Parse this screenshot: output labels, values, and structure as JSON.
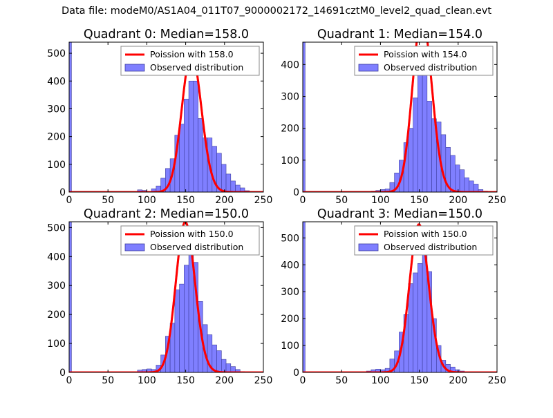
{
  "figure": {
    "suptitle": "Data file: modeM0/AS1A04_011T07_9000002172_14691cztM0_level2_quad_clean.evt"
  },
  "colors": {
    "bar_fill": "#7f7fff",
    "bar_edge": "#3d3d9e",
    "poisson_line": "#ff0000",
    "legend_edge": "#888888"
  },
  "chart_data": [
    {
      "type": "bar",
      "title": "Quadrant 0: Median=158.0",
      "median": 158.0,
      "xlim": [
        0,
        250
      ],
      "ylim": [
        0,
        540
      ],
      "xticks": [
        0,
        50,
        100,
        150,
        200,
        250
      ],
      "yticks": [
        0,
        100,
        200,
        300,
        400,
        500
      ],
      "legend": [
        "Poission with 158.0",
        "Observed distribution"
      ],
      "legend_loc": "upper right",
      "bin_width": 6,
      "zero_bin": 540,
      "hist": [
        [
          88,
          8
        ],
        [
          94,
          6
        ],
        [
          106,
          12
        ],
        [
          112,
          22
        ],
        [
          118,
          50
        ],
        [
          124,
          85
        ],
        [
          130,
          120
        ],
        [
          136,
          205
        ],
        [
          142,
          245
        ],
        [
          148,
          335
        ],
        [
          154,
          400
        ],
        [
          160,
          400
        ],
        [
          166,
          265
        ],
        [
          172,
          195
        ],
        [
          178,
          195
        ],
        [
          184,
          165
        ],
        [
          190,
          140
        ],
        [
          196,
          100
        ],
        [
          202,
          65
        ],
        [
          208,
          40
        ],
        [
          214,
          25
        ],
        [
          220,
          15
        ],
        [
          226,
          5
        ],
        [
          232,
          3
        ]
      ]
    },
    {
      "type": "bar",
      "title": "Quadrant 1: Median=154.0",
      "median": 154.0,
      "xlim": [
        0,
        250
      ],
      "ylim": [
        0,
        470
      ],
      "xticks": [
        0,
        50,
        100,
        150,
        200,
        250
      ],
      "yticks": [
        0,
        100,
        200,
        300,
        400
      ],
      "legend": [
        "Poission with 154.0",
        "Observed distribution"
      ],
      "legend_loc": "upper right",
      "bin_width": 6,
      "zero_bin": 470,
      "hist": [
        [
          88,
          3
        ],
        [
          94,
          5
        ],
        [
          100,
          8
        ],
        [
          106,
          10
        ],
        [
          112,
          30
        ],
        [
          118,
          60
        ],
        [
          124,
          100
        ],
        [
          130,
          155
        ],
        [
          136,
          200
        ],
        [
          142,
          295
        ],
        [
          148,
          400
        ],
        [
          154,
          440
        ],
        [
          160,
          285
        ],
        [
          166,
          230
        ],
        [
          172,
          220
        ],
        [
          178,
          180
        ],
        [
          184,
          140
        ],
        [
          190,
          115
        ],
        [
          196,
          85
        ],
        [
          202,
          70
        ],
        [
          208,
          45
        ],
        [
          214,
          35
        ],
        [
          220,
          25
        ],
        [
          226,
          8
        ],
        [
          232,
          3
        ]
      ]
    },
    {
      "type": "bar",
      "title": "Quadrant 2: Median=150.0",
      "median": 150.0,
      "xlim": [
        0,
        250
      ],
      "ylim": [
        0,
        520
      ],
      "xticks": [
        0,
        50,
        100,
        150,
        200,
        250
      ],
      "yticks": [
        0,
        100,
        200,
        300,
        400,
        500
      ],
      "legend": [
        "Poission with 150.0",
        "Observed distribution"
      ],
      "legend_loc": "upper right",
      "bin_width": 6,
      "zero_bin": 520,
      "hist": [
        [
          88,
          8
        ],
        [
          94,
          10
        ],
        [
          100,
          12
        ],
        [
          106,
          10
        ],
        [
          112,
          25
        ],
        [
          118,
          60
        ],
        [
          124,
          125
        ],
        [
          130,
          170
        ],
        [
          136,
          285
        ],
        [
          142,
          305
        ],
        [
          148,
          370
        ],
        [
          154,
          415
        ],
        [
          160,
          380
        ],
        [
          166,
          245
        ],
        [
          172,
          165
        ],
        [
          178,
          130
        ],
        [
          184,
          95
        ],
        [
          190,
          75
        ],
        [
          196,
          45
        ],
        [
          202,
          30
        ],
        [
          208,
          20
        ],
        [
          214,
          10
        ],
        [
          220,
          3
        ]
      ]
    },
    {
      "type": "bar",
      "title": "Quadrant 3: Median=150.0",
      "median": 150.0,
      "xlim": [
        0,
        250
      ],
      "ylim": [
        0,
        560
      ],
      "xticks": [
        0,
        50,
        100,
        150,
        200,
        250
      ],
      "yticks": [
        0,
        100,
        200,
        300,
        400,
        500
      ],
      "legend": [
        "Poission with 150.0",
        "Observed distribution"
      ],
      "legend_loc": "upper right",
      "bin_width": 6,
      "zero_bin": 560,
      "hist": [
        [
          82,
          5
        ],
        [
          88,
          10
        ],
        [
          94,
          12
        ],
        [
          100,
          10
        ],
        [
          106,
          15
        ],
        [
          112,
          50
        ],
        [
          118,
          80
        ],
        [
          124,
          150
        ],
        [
          130,
          215
        ],
        [
          136,
          330
        ],
        [
          142,
          370
        ],
        [
          148,
          405
        ],
        [
          154,
          440
        ],
        [
          160,
          375
        ],
        [
          166,
          200
        ],
        [
          172,
          100
        ],
        [
          178,
          45
        ],
        [
          184,
          30
        ],
        [
          190,
          20
        ],
        [
          196,
          10
        ],
        [
          202,
          5
        ],
        [
          208,
          3
        ]
      ]
    }
  ]
}
